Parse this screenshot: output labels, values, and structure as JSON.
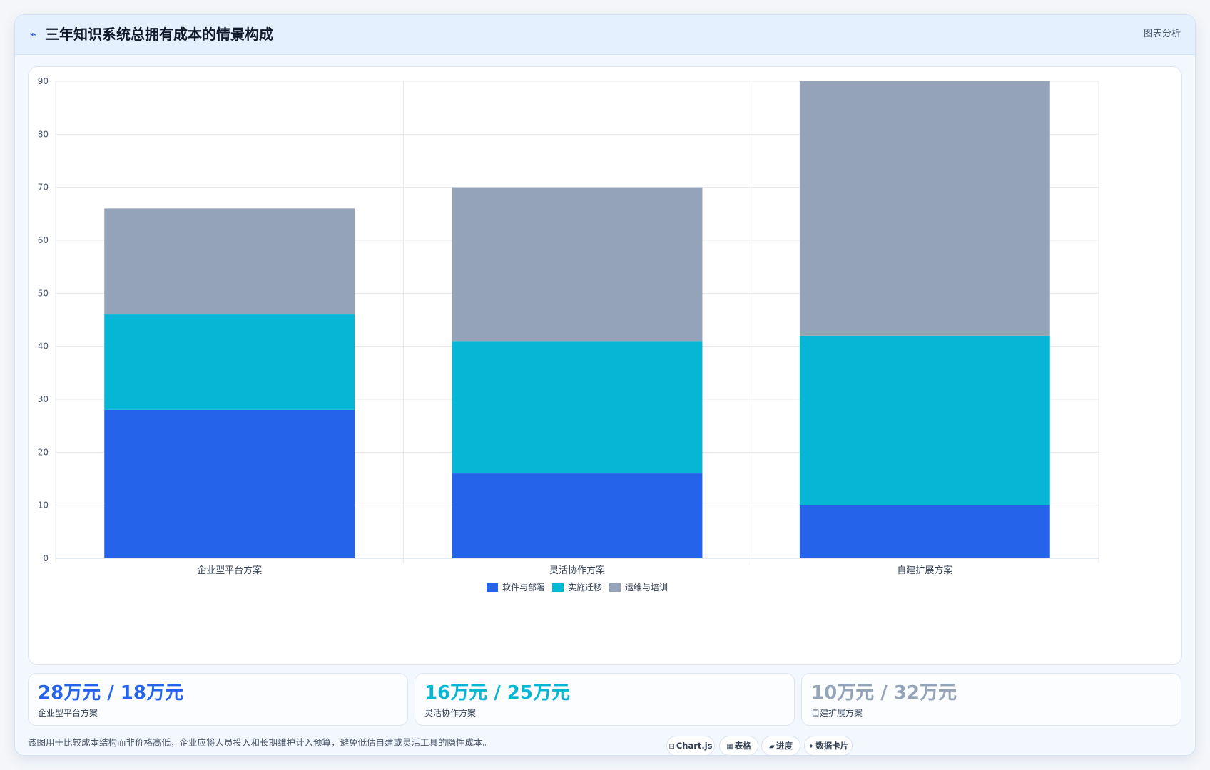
{
  "header": {
    "icon": "chart-spark-icon",
    "title": "三年知识系统总拥有成本的情景构成",
    "action_label": "图表分析"
  },
  "colors": {
    "software": "#2563eb",
    "implementation": "#06b6d4",
    "operations": "#94a3b8",
    "grid": "#e5e7eb",
    "axis_text": "#475569"
  },
  "chart_data": {
    "type": "bar",
    "stacked": true,
    "categories": [
      "企业型平台方案",
      "灵活协作方案",
      "自建扩展方案"
    ],
    "series": [
      {
        "name": "软件与部署",
        "values": [
          28,
          16,
          10
        ],
        "color": "#2563eb"
      },
      {
        "name": "实施迁移",
        "values": [
          18,
          25,
          32
        ],
        "color": "#06b6d4"
      },
      {
        "name": "运维与培训",
        "values": [
          20,
          29,
          48
        ],
        "color": "#94a3b8"
      }
    ],
    "ylim": [
      0,
      90
    ],
    "yticks": [
      0,
      10,
      20,
      30,
      40,
      50,
      60,
      70,
      80,
      90
    ],
    "grid": true,
    "legend": "bottom-center"
  },
  "stats": [
    {
      "value": "28万元 / 18万元",
      "label": "企业型平台方案",
      "color": "#2563eb"
    },
    {
      "value": "16万元 / 25万元",
      "label": "灵活协作方案",
      "color": "#06b6d4"
    },
    {
      "value": "10万元 / 32万元",
      "label": "自建扩展方案",
      "color": "#94a3b8"
    }
  ],
  "footnote": "该图用于比较成本结构而非价格高低，企业应将人员投入和长期维护计入预算，避免低估自建或灵活工具的隐性成本。",
  "toolbar": {
    "chartjs": {
      "icon": "⊟",
      "label": "Chart.js"
    },
    "table": {
      "icon": "▦",
      "label": "表格"
    },
    "progress": {
      "icon": "▰",
      "label": "进度"
    },
    "cards": {
      "icon": "✦",
      "label": "数据卡片"
    }
  }
}
